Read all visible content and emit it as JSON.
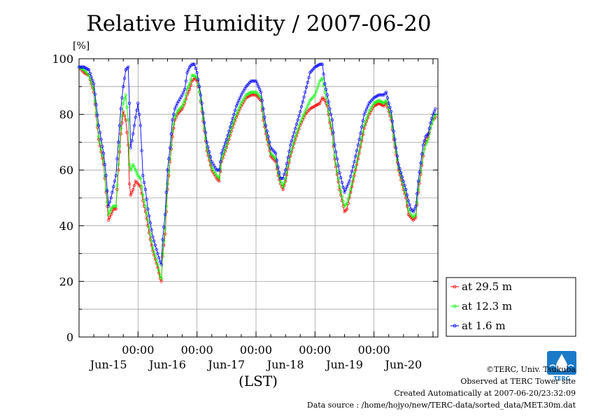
{
  "footer": {
    "copyright": "©TERC, Univ. Tsukuba",
    "observed": "Observed at TERC Tower site",
    "created": "Created Automatically at 2007-06-20/23:32:09",
    "source": "Data source : /home/hojyo/new/TERC-data/sorted_data/MET.30m.dat"
  },
  "logo": {
    "text": "TERC",
    "color": "#1a7ac8"
  },
  "chart_data": {
    "type": "line",
    "title": "Relative Humidity / 2007-06-20",
    "ylabel": "[%]",
    "xlabel": "(LST)",
    "ylim": [
      0,
      100
    ],
    "yticks": [
      0,
      20,
      40,
      60,
      80,
      100
    ],
    "xlim": [
      0,
      146
    ],
    "time_ticks": [
      "00:00",
      "00:00",
      "00:00",
      "00:00",
      "00:00"
    ],
    "date_labels": [
      "Jun-15",
      "Jun-16",
      "Jun-17",
      "Jun-18",
      "Jun-19",
      "Jun-20"
    ],
    "grid": true,
    "legend_position": "bottom-right",
    "x_unit": "hours from 2007-06-14 00:00 LST, sampled every 30 min",
    "series": [
      {
        "name": "at 29.5 m",
        "color": "#ff0000",
        "points": [
          [
            0,
            97
          ],
          [
            2,
            95
          ],
          [
            4,
            94
          ],
          [
            6,
            88
          ],
          [
            8,
            71
          ],
          [
            10,
            62
          ],
          [
            11,
            52
          ],
          [
            12,
            42
          ],
          [
            13,
            44
          ],
          [
            14,
            46
          ],
          [
            15,
            46
          ],
          [
            16,
            60
          ],
          [
            17,
            73
          ],
          [
            18,
            81
          ],
          [
            19,
            78
          ],
          [
            20,
            69
          ],
          [
            20.5,
            55
          ],
          [
            21,
            51
          ],
          [
            22,
            53
          ],
          [
            23,
            56
          ],
          [
            24,
            55
          ],
          [
            25,
            54
          ],
          [
            26,
            49
          ],
          [
            27,
            45
          ],
          [
            28,
            40
          ],
          [
            29,
            35
          ],
          [
            30,
            31
          ],
          [
            31,
            28
          ],
          [
            32,
            25
          ],
          [
            33,
            21
          ],
          [
            33.5,
            20
          ],
          [
            34,
            29
          ],
          [
            35,
            37
          ],
          [
            36,
            53
          ],
          [
            37,
            63
          ],
          [
            38,
            72
          ],
          [
            39,
            78
          ],
          [
            40,
            80
          ],
          [
            42,
            82
          ],
          [
            43,
            84
          ],
          [
            44,
            87
          ],
          [
            45,
            89
          ],
          [
            46,
            92
          ],
          [
            47,
            93
          ],
          [
            48,
            92
          ],
          [
            49,
            88
          ],
          [
            50,
            81
          ],
          [
            52,
            67
          ],
          [
            54,
            60
          ],
          [
            56,
            57
          ],
          [
            57,
            56
          ],
          [
            58,
            63
          ],
          [
            60,
            68
          ],
          [
            62,
            74
          ],
          [
            64,
            79
          ],
          [
            66,
            83
          ],
          [
            68,
            86
          ],
          [
            70,
            87
          ],
          [
            72,
            87
          ],
          [
            74,
            85
          ],
          [
            75,
            78
          ],
          [
            76,
            73
          ],
          [
            78,
            65
          ],
          [
            80,
            63
          ],
          [
            81,
            58
          ],
          [
            82,
            55
          ],
          [
            83,
            53
          ],
          [
            84,
            56
          ],
          [
            86,
            65
          ],
          [
            88,
            71
          ],
          [
            90,
            76
          ],
          [
            92,
            80
          ],
          [
            94,
            82
          ],
          [
            96,
            83
          ],
          [
            98,
            84
          ],
          [
            99,
            86
          ],
          [
            100,
            85
          ],
          [
            101,
            83
          ],
          [
            102,
            77
          ],
          [
            103,
            73
          ],
          [
            104,
            64
          ],
          [
            106,
            53
          ],
          [
            108,
            45
          ],
          [
            109,
            46
          ],
          [
            110,
            50
          ],
          [
            112,
            58
          ],
          [
            114,
            66
          ],
          [
            116,
            75
          ],
          [
            118,
            80
          ],
          [
            120,
            83
          ],
          [
            122,
            84
          ],
          [
            124,
            83
          ],
          [
            125,
            84
          ],
          [
            126,
            81
          ],
          [
            127,
            78
          ],
          [
            128,
            71
          ],
          [
            130,
            60
          ],
          [
            132,
            53
          ],
          [
            133,
            50
          ],
          [
            134,
            44
          ],
          [
            135,
            43
          ],
          [
            136,
            42
          ],
          [
            137,
            43
          ],
          [
            138,
            52
          ],
          [
            140,
            65
          ],
          [
            141,
            70
          ],
          [
            142,
            72
          ],
          [
            143,
            75
          ],
          [
            144,
            78
          ],
          [
            145,
            79
          ]
        ]
      },
      {
        "name": "at 12.3 m",
        "color": "#00ff00",
        "points": [
          [
            0,
            97
          ],
          [
            2,
            96
          ],
          [
            4,
            94
          ],
          [
            6,
            89
          ],
          [
            8,
            72
          ],
          [
            10,
            63
          ],
          [
            11,
            53
          ],
          [
            12,
            44
          ],
          [
            13,
            46
          ],
          [
            14,
            47
          ],
          [
            15,
            47
          ],
          [
            16,
            62
          ],
          [
            17,
            75
          ],
          [
            18,
            84
          ],
          [
            19,
            87
          ],
          [
            20,
            78
          ],
          [
            20.5,
            62
          ],
          [
            21,
            60
          ],
          [
            22,
            62
          ],
          [
            23,
            60
          ],
          [
            24,
            58
          ],
          [
            25,
            57
          ],
          [
            26,
            51
          ],
          [
            27,
            47
          ],
          [
            28,
            42
          ],
          [
            29,
            37
          ],
          [
            30,
            32
          ],
          [
            31,
            29
          ],
          [
            32,
            26
          ],
          [
            33,
            22
          ],
          [
            33.5,
            21
          ],
          [
            34,
            30
          ],
          [
            35,
            39
          ],
          [
            36,
            55
          ],
          [
            37,
            64
          ],
          [
            38,
            74
          ],
          [
            39,
            79
          ],
          [
            40,
            81
          ],
          [
            42,
            83
          ],
          [
            43,
            85
          ],
          [
            44,
            89
          ],
          [
            45,
            91
          ],
          [
            46,
            94
          ],
          [
            47,
            94
          ],
          [
            48,
            93
          ],
          [
            49,
            88
          ],
          [
            50,
            82
          ],
          [
            52,
            68
          ],
          [
            54,
            61
          ],
          [
            56,
            58
          ],
          [
            57,
            57
          ],
          [
            58,
            64
          ],
          [
            60,
            69
          ],
          [
            62,
            75
          ],
          [
            64,
            80
          ],
          [
            66,
            84
          ],
          [
            68,
            87
          ],
          [
            70,
            88
          ],
          [
            72,
            88
          ],
          [
            74,
            86
          ],
          [
            75,
            79
          ],
          [
            76,
            74
          ],
          [
            78,
            66
          ],
          [
            80,
            64
          ],
          [
            81,
            59
          ],
          [
            82,
            56
          ],
          [
            83,
            54
          ],
          [
            84,
            57
          ],
          [
            86,
            66
          ],
          [
            88,
            72
          ],
          [
            90,
            77
          ],
          [
            92,
            81
          ],
          [
            94,
            85
          ],
          [
            96,
            87
          ],
          [
            98,
            92
          ],
          [
            99,
            93
          ],
          [
            100,
            88
          ],
          [
            101,
            84
          ],
          [
            102,
            78
          ],
          [
            103,
            74
          ],
          [
            104,
            65
          ],
          [
            106,
            54
          ],
          [
            108,
            47
          ],
          [
            109,
            48
          ],
          [
            110,
            51
          ],
          [
            112,
            59
          ],
          [
            114,
            67
          ],
          [
            116,
            76
          ],
          [
            118,
            81
          ],
          [
            120,
            84
          ],
          [
            122,
            85
          ],
          [
            124,
            84
          ],
          [
            125,
            85
          ],
          [
            126,
            82
          ],
          [
            127,
            79
          ],
          [
            128,
            72
          ],
          [
            130,
            61
          ],
          [
            132,
            54
          ],
          [
            133,
            51
          ],
          [
            134,
            46
          ],
          [
            135,
            44
          ],
          [
            136,
            43
          ],
          [
            137,
            44
          ],
          [
            138,
            53
          ],
          [
            140,
            66
          ],
          [
            141,
            69
          ],
          [
            142,
            71
          ],
          [
            143,
            75
          ],
          [
            144,
            78
          ],
          [
            145,
            80
          ]
        ]
      },
      {
        "name": "at 1.6 m",
        "color": "#0000ff",
        "points": [
          [
            0,
            97
          ],
          [
            2,
            97
          ],
          [
            4,
            96
          ],
          [
            6,
            91
          ],
          [
            8,
            76
          ],
          [
            10,
            66
          ],
          [
            11,
            58
          ],
          [
            12,
            47
          ],
          [
            13,
            50
          ],
          [
            14,
            54
          ],
          [
            15,
            58
          ],
          [
            16,
            70
          ],
          [
            17,
            82
          ],
          [
            18,
            90
          ],
          [
            19,
            96
          ],
          [
            20,
            97
          ],
          [
            20.5,
            84
          ],
          [
            21,
            68
          ],
          [
            22,
            73
          ],
          [
            23,
            79
          ],
          [
            24,
            84
          ],
          [
            25,
            76
          ],
          [
            26,
            58
          ],
          [
            27,
            53
          ],
          [
            28,
            46
          ],
          [
            29,
            41
          ],
          [
            30,
            36
          ],
          [
            31,
            33
          ],
          [
            32,
            30
          ],
          [
            33,
            27
          ],
          [
            33.5,
            26
          ],
          [
            34,
            35
          ],
          [
            35,
            44
          ],
          [
            36,
            60
          ],
          [
            37,
            68
          ],
          [
            38,
            78
          ],
          [
            39,
            82
          ],
          [
            40,
            84
          ],
          [
            42,
            87
          ],
          [
            43,
            89
          ],
          [
            44,
            95
          ],
          [
            45,
            97
          ],
          [
            46,
            98
          ],
          [
            47,
            98
          ],
          [
            48,
            95
          ],
          [
            49,
            90
          ],
          [
            50,
            84
          ],
          [
            52,
            70
          ],
          [
            54,
            63
          ],
          [
            56,
            60
          ],
          [
            57,
            60
          ],
          [
            58,
            66
          ],
          [
            60,
            71
          ],
          [
            62,
            77
          ],
          [
            64,
            83
          ],
          [
            66,
            87
          ],
          [
            68,
            90
          ],
          [
            70,
            92
          ],
          [
            72,
            92
          ],
          [
            74,
            88
          ],
          [
            75,
            82
          ],
          [
            76,
            76
          ],
          [
            78,
            68
          ],
          [
            80,
            66
          ],
          [
            81,
            61
          ],
          [
            82,
            57
          ],
          [
            83,
            57
          ],
          [
            84,
            60
          ],
          [
            86,
            69
          ],
          [
            88,
            75
          ],
          [
            90,
            81
          ],
          [
            92,
            88
          ],
          [
            94,
            95
          ],
          [
            96,
            97
          ],
          [
            98,
            98
          ],
          [
            99,
            98
          ],
          [
            100,
            91
          ],
          [
            101,
            87
          ],
          [
            102,
            82
          ],
          [
            103,
            78
          ],
          [
            104,
            69
          ],
          [
            106,
            59
          ],
          [
            108,
            52
          ],
          [
            109,
            54
          ],
          [
            110,
            56
          ],
          [
            112,
            63
          ],
          [
            114,
            71
          ],
          [
            116,
            80
          ],
          [
            118,
            84
          ],
          [
            120,
            86
          ],
          [
            122,
            87
          ],
          [
            124,
            87
          ],
          [
            125,
            88
          ],
          [
            126,
            84
          ],
          [
            127,
            81
          ],
          [
            128,
            74
          ],
          [
            130,
            62
          ],
          [
            132,
            56
          ],
          [
            133,
            53
          ],
          [
            134,
            49
          ],
          [
            135,
            46
          ],
          [
            136,
            45
          ],
          [
            137,
            47
          ],
          [
            138,
            56
          ],
          [
            140,
            69
          ],
          [
            141,
            72
          ],
          [
            142,
            73
          ],
          [
            143,
            77
          ],
          [
            144,
            80
          ],
          [
            145,
            82
          ]
        ]
      }
    ]
  }
}
